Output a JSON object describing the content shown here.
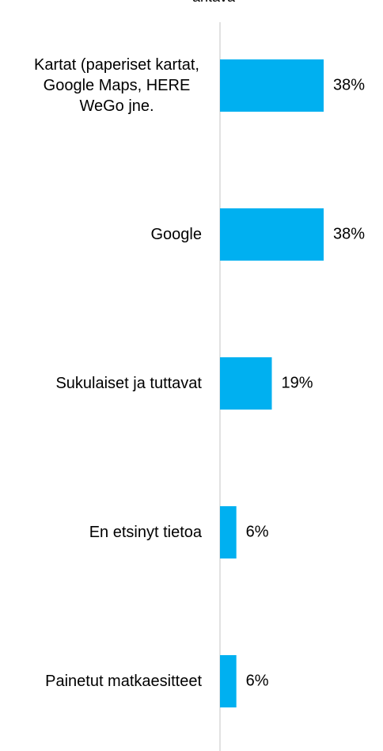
{
  "chart_data": {
    "type": "bar",
    "orientation": "horizontal",
    "title": "antava",
    "categories": [
      "Kartat (paperiset kartat, Google Maps, HERE WeGo jne.",
      "Google",
      "Sukulaiset ja tuttavat",
      "En etsinyt tietoa",
      "Painetut matkaesitteet"
    ],
    "values": [
      38,
      38,
      19,
      6,
      6
    ],
    "value_labels": [
      "38%",
      "38%",
      "19%",
      "6%",
      "6%"
    ],
    "color": "#00b0f0"
  }
}
